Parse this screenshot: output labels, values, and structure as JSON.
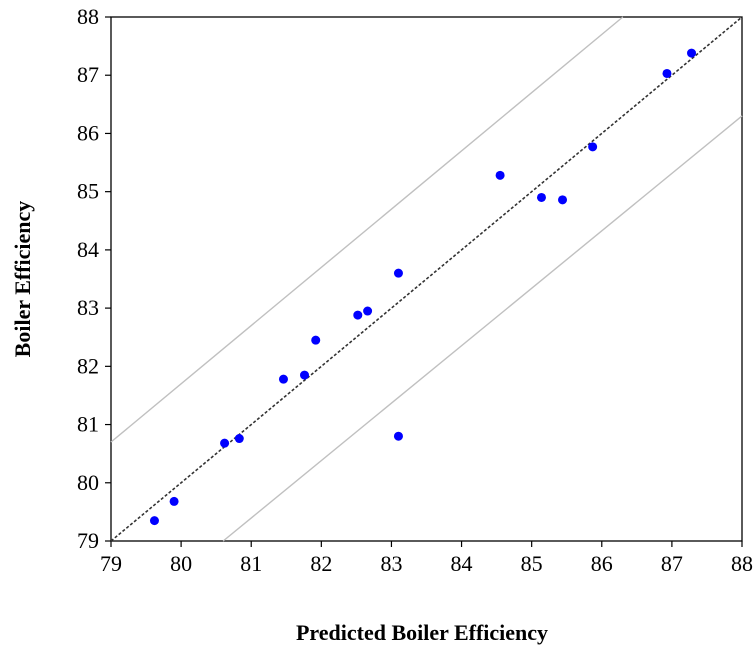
{
  "chart_data": {
    "type": "scatter",
    "title": "",
    "xlabel": "Predicted Boiler Efficiency",
    "ylabel": "Boiler Efficiency",
    "xlim": [
      79,
      88
    ],
    "ylim": [
      79,
      88
    ],
    "x_ticks": [
      "79",
      "80",
      "81",
      "82",
      "83",
      "84",
      "85",
      "86",
      "87",
      "88"
    ],
    "y_ticks": [
      "79",
      "80",
      "81",
      "82",
      "83",
      "84",
      "85",
      "86",
      "87",
      "88"
    ],
    "grid": false,
    "legend": "none",
    "reference_lines": [
      {
        "style": "dashed",
        "color": "#333333",
        "points": [
          [
            79,
            79
          ],
          [
            88,
            88
          ]
        ]
      },
      {
        "style": "solid",
        "color": "#c0c0c0",
        "points": [
          [
            79,
            80.7
          ],
          [
            86.3,
            88
          ]
        ]
      },
      {
        "style": "solid",
        "color": "#c0c0c0",
        "points": [
          [
            80.6,
            79
          ],
          [
            88,
            86.3
          ]
        ]
      }
    ],
    "series": [
      {
        "color": "#0000ff",
        "points": [
          [
            79.62,
            79.35
          ],
          [
            79.9,
            79.68
          ],
          [
            80.62,
            80.68
          ],
          [
            80.83,
            80.76
          ],
          [
            81.46,
            81.78
          ],
          [
            81.76,
            81.85
          ],
          [
            81.92,
            82.45
          ],
          [
            82.52,
            82.88
          ],
          [
            82.66,
            82.95
          ],
          [
            83.1,
            83.6
          ],
          [
            83.1,
            80.8
          ],
          [
            84.55,
            85.28
          ],
          [
            85.14,
            84.9
          ],
          [
            85.44,
            84.86
          ],
          [
            85.87,
            85.77
          ],
          [
            86.93,
            87.03
          ],
          [
            87.28,
            87.38
          ]
        ]
      }
    ]
  }
}
